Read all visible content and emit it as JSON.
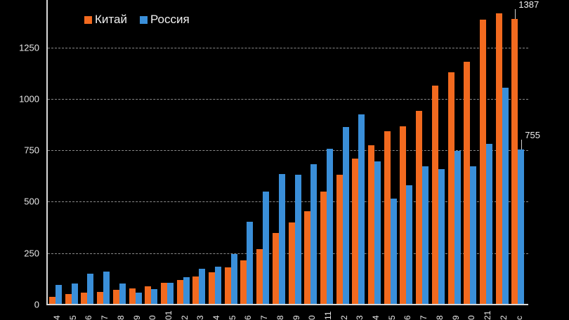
{
  "chart_data": {
    "type": "bar",
    "title": "",
    "xlabel": "",
    "ylabel": "",
    "ylim": [
      0,
      1450
    ],
    "yticks": [
      0,
      250,
      500,
      750,
      1000,
      1250
    ],
    "grid": "horizontal dashed",
    "legend_position": "top-left inside",
    "categories": [
      "4",
      "5",
      "6",
      "7",
      "8",
      "9",
      "0",
      "01",
      "2",
      "3",
      "4",
      "5",
      "6",
      "7",
      "8",
      "9",
      "0",
      "11",
      "2",
      "3",
      "4",
      "5",
      "6",
      "7",
      "8",
      "9",
      "0",
      "21",
      "2",
      "c"
    ],
    "series": [
      {
        "name": "Китай",
        "color": "#f26a1f",
        "values": [
          38,
          51,
          58,
          61,
          72,
          78,
          89,
          106,
          119,
          136,
          157,
          181,
          215,
          270,
          348,
          399,
          454,
          549,
          631,
          709,
          774,
          842,
          866,
          941,
          1063,
          1129,
          1180,
          1384,
          1415,
          1387
        ]
      },
      {
        "name": "Россия",
        "color": "#3a8fd9",
        "values": [
          96,
          102,
          150,
          160,
          102,
          58,
          75,
          106,
          133,
          174,
          184,
          246,
          402,
          549,
          634,
          631,
          682,
          758,
          862,
          924,
          695,
          515,
          580,
          672,
          658,
          747,
          672,
          780,
          1053,
          755
        ]
      }
    ],
    "annotations": [
      {
        "series": "Китай",
        "index": 29,
        "text": "1387"
      },
      {
        "series": "Россия",
        "index": 29,
        "text": "755"
      }
    ]
  },
  "legend": {
    "items": [
      {
        "label": "Китай",
        "color": "#f26a1f"
      },
      {
        "label": "Россия",
        "color": "#3a8fd9"
      }
    ]
  },
  "y_axis": {
    "labels": [
      "0",
      "250",
      "500",
      "750",
      "1000",
      "1250"
    ]
  }
}
